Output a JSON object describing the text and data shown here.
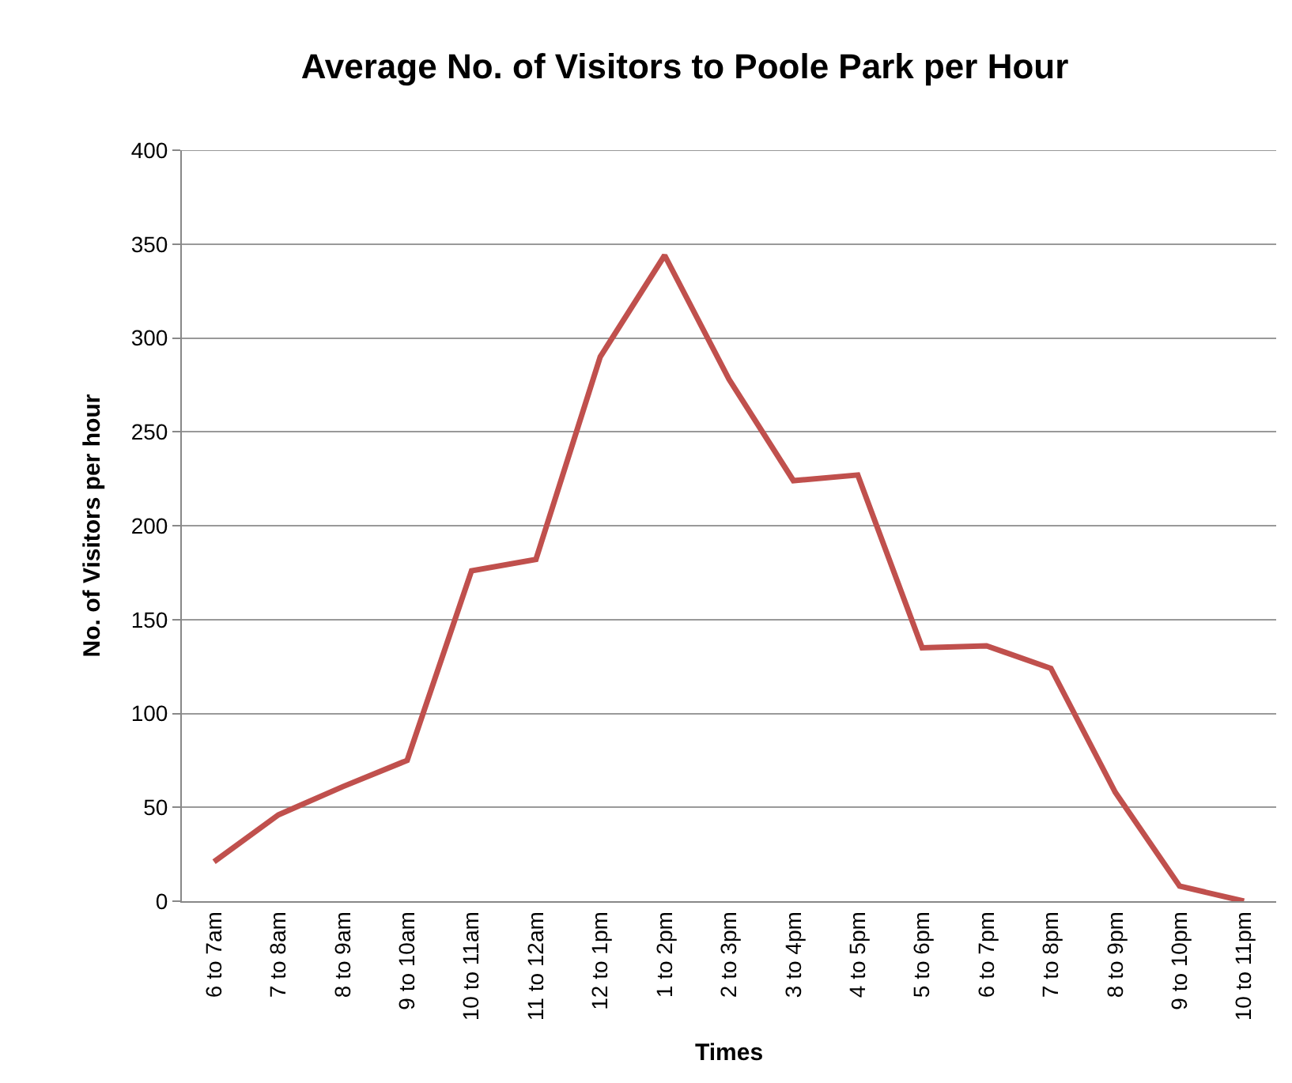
{
  "chart_data": {
    "type": "line",
    "title": "Average No. of Visitors to Poole Park per Hour",
    "xlabel": "Times",
    "ylabel": "No. of Visitors per hour",
    "categories": [
      "6 to 7am",
      "7 to 8am",
      "8 to 9am",
      "9 to 10am",
      "10 to 11am",
      "11 to 12am",
      "12 to 1pm",
      "1 to 2pm",
      "2 to 3pm",
      "3 to 4pm",
      "4 to 5pm",
      "5 to 6pm",
      "6 to 7pm",
      "7 to 8pm",
      "8 to 9pm",
      "9 to 10pm",
      "10 to 11pm"
    ],
    "series": [
      {
        "color": "#c0504d",
        "values": [
          21,
          46,
          61,
          75,
          176,
          182,
          290,
          344,
          278,
          224,
          227,
          135,
          136,
          124,
          58,
          8,
          0
        ]
      }
    ],
    "ylim": [
      0,
      400
    ],
    "yticks": [
      0,
      50,
      100,
      150,
      200,
      250,
      300,
      350,
      400
    ],
    "grid": "y",
    "marker": "none",
    "line_style": "solid"
  }
}
